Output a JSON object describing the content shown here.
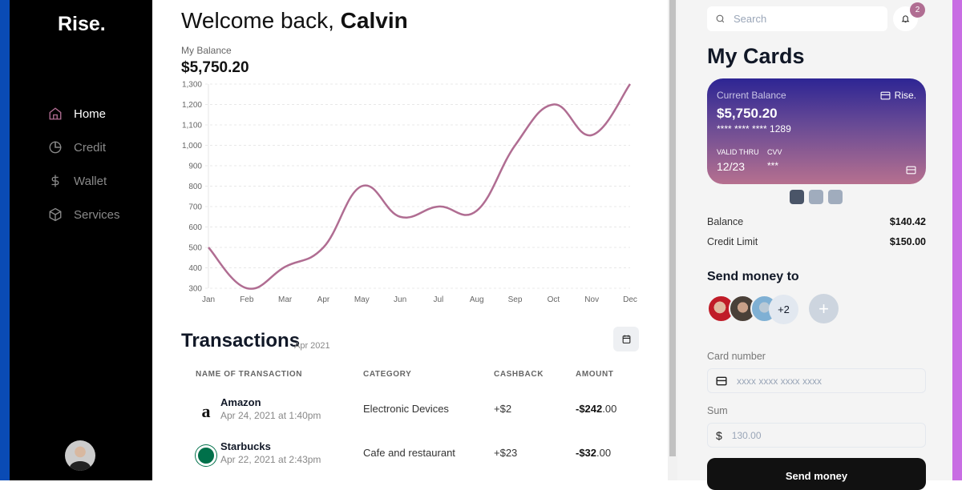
{
  "sidebar": {
    "logo": "Rise.",
    "items": [
      {
        "label": "Home",
        "icon": "home-icon",
        "active": true
      },
      {
        "label": "Credit",
        "icon": "pie-chart-icon"
      },
      {
        "label": "Wallet",
        "icon": "dollar-icon"
      },
      {
        "label": "Services",
        "icon": "box-icon"
      }
    ]
  },
  "main": {
    "welcome_prefix": "Welcome back, ",
    "user_name": "Calvin",
    "balance_label": "My Balance",
    "balance": "$5,750.20"
  },
  "chart_data": {
    "type": "line",
    "categories": [
      "Jan",
      "Feb",
      "Mar",
      "Apr",
      "May",
      "Jun",
      "Jul",
      "Aug",
      "Sep",
      "Oct",
      "Nov",
      "Dec"
    ],
    "values": [
      500,
      300,
      405,
      500,
      800,
      650,
      700,
      680,
      1000,
      1200,
      1050,
      1300
    ],
    "ylim": [
      300,
      1300
    ],
    "yticks": [
      "300",
      "400",
      "500",
      "600",
      "700",
      "800",
      "900",
      "1,000",
      "1,100",
      "1,200",
      "1,300"
    ],
    "grid": true,
    "color": "#b06d92"
  },
  "transactions": {
    "title": "Transactions",
    "period": "Apr 2021",
    "headers": [
      "NAME OF TRANSACTION",
      "CATEGORY",
      "CASHBACK",
      "AMOUNT"
    ],
    "rows": [
      {
        "name": "Amazon",
        "date": "Apr 24, 2021 at 1:40pm",
        "category": "Electronic Devices",
        "cashback": "+$2",
        "amount_main": "-$242",
        "amount_cents": ".00"
      },
      {
        "name": "Starbucks",
        "date": "Apr 22, 2021 at 2:43pm",
        "category": "Cafe and restaurant",
        "cashback": "+$23",
        "amount_main": "-$32",
        "amount_cents": ".00"
      }
    ]
  },
  "right": {
    "search_placeholder": "Search",
    "notification_count": "2",
    "title": "My Cards",
    "card": {
      "label": "Current Balance",
      "balance": "$5,750.20",
      "number": "**** **** **** 1289",
      "valid_label": "VALID THRU",
      "valid": "12/23",
      "cvv_label": "CVV",
      "cvv": "***",
      "brand": "Rise."
    },
    "balance_label": "Balance",
    "balance": "$140.42",
    "limit_label": "Credit Limit",
    "limit": "$150.00",
    "send_title": "Send money to",
    "more_contacts": "+2",
    "add": "+",
    "card_number_label": "Card number",
    "card_number_placeholder": "xxxx xxxx xxxx xxxx",
    "sum_label": "Sum",
    "sum_currency": "$",
    "sum_placeholder": "130.00",
    "send_button": "Send money"
  }
}
